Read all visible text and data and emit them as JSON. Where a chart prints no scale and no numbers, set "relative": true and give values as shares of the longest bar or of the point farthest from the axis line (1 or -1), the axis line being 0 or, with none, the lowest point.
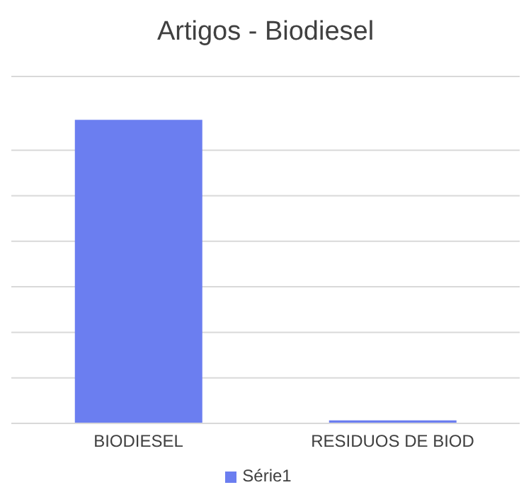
{
  "chart_data": {
    "type": "bar",
    "title": "Artigos - Biodiesel",
    "categories": [
      "BIODIESEL",
      "RESIDUOS DE BIOD"
    ],
    "series": [
      {
        "name": "Série1",
        "color": "#6b7ef0",
        "values": [
          1,
          0.01
        ]
      }
    ],
    "relative": true,
    "grid": "y",
    "legend": "bottom"
  }
}
